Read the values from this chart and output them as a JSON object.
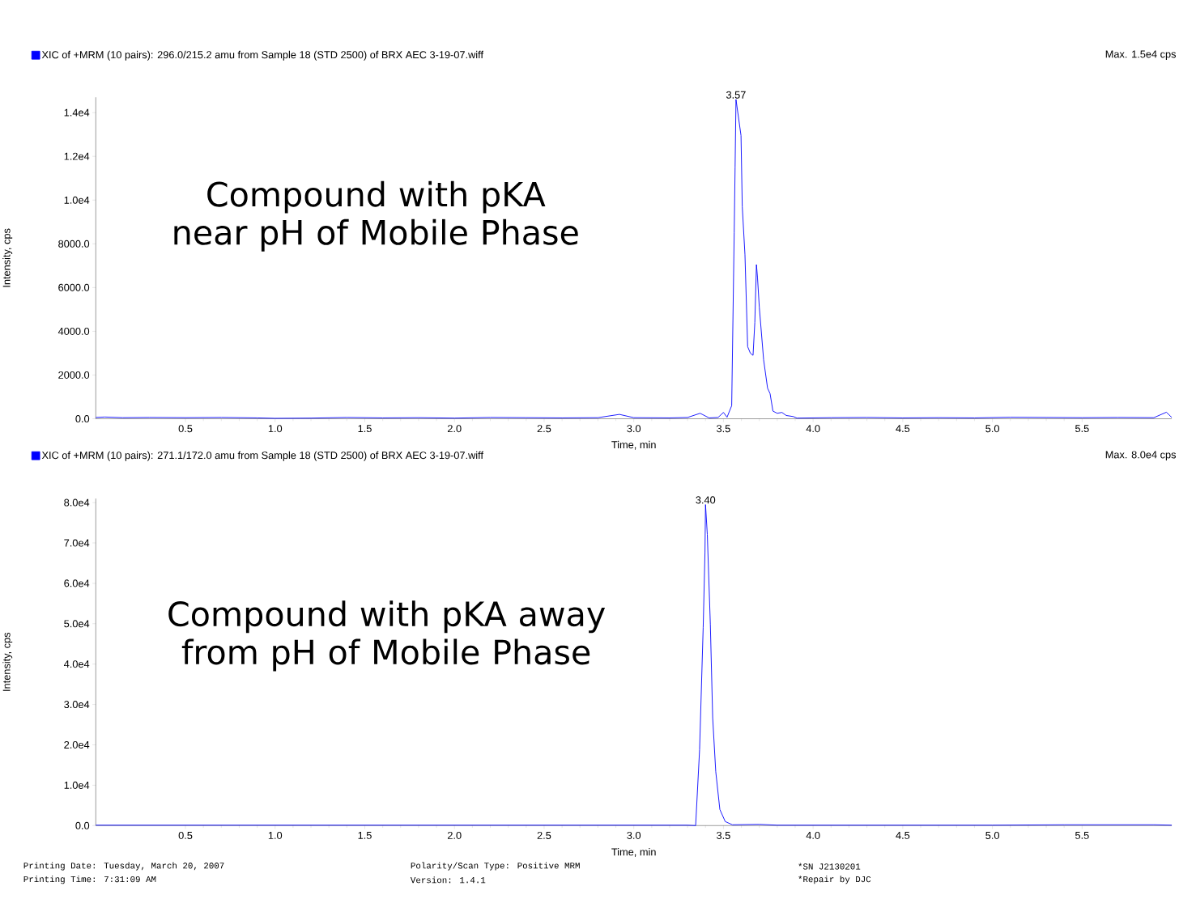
{
  "chart_data": [
    {
      "type": "line",
      "subtitle": "Max. 1.5e4 cps",
      "xlabel": "Time, min",
      "ylabel": "Intensity, cps",
      "series": [
        {
          "name": "XIC of +MRM (10 pairs): 296.0/215.2 amu from Sample 18 (STD 2500) of BRX AEC 3-19-07.wiff",
          "color": "#0000ff",
          "x": [
            0.0,
            0.05,
            0.15,
            0.3,
            0.5,
            0.7,
            0.9,
            1.0,
            1.2,
            1.4,
            1.6,
            1.8,
            2.0,
            2.2,
            2.4,
            2.6,
            2.8,
            2.92,
            3.0,
            3.2,
            3.3,
            3.37,
            3.42,
            3.47,
            3.5,
            3.52,
            3.546,
            3.56,
            3.565,
            3.57,
            3.598,
            3.605,
            3.62,
            3.635,
            3.65,
            3.665,
            3.675,
            3.684,
            3.69,
            3.7,
            3.724,
            3.746,
            3.76,
            3.776,
            3.8,
            3.826,
            3.85,
            3.89,
            3.91,
            4.1,
            4.3,
            4.5,
            4.7,
            4.9,
            5.1,
            5.3,
            5.5,
            5.7,
            5.9,
            5.97,
            6.0
          ],
          "values": [
            60,
            80,
            50,
            60,
            50,
            60,
            40,
            20,
            30,
            60,
            40,
            50,
            30,
            60,
            50,
            40,
            50,
            200,
            50,
            40,
            60,
            250,
            40,
            60,
            290,
            70,
            600,
            8500,
            11500,
            14600,
            12950,
            9700,
            7500,
            3300,
            3000,
            2900,
            4400,
            7050,
            6450,
            5100,
            2700,
            1400,
            1150,
            350,
            250,
            290,
            150,
            100,
            30,
            50,
            60,
            40,
            50,
            40,
            70,
            60,
            50,
            60,
            50,
            300,
            60
          ]
        }
      ],
      "xlim": [
        0,
        6
      ],
      "ylim": [
        0,
        14700
      ],
      "xticks": [
        {
          "value": 0.5,
          "label": "0.5"
        },
        {
          "value": 1.0,
          "label": "1.0"
        },
        {
          "value": 1.5,
          "label": "1.5"
        },
        {
          "value": 2.0,
          "label": "2.0"
        },
        {
          "value": 2.5,
          "label": "2.5"
        },
        {
          "value": 3.0,
          "label": "3.0"
        },
        {
          "value": 3.5,
          "label": "3.5"
        },
        {
          "value": 4.0,
          "label": "4.0"
        },
        {
          "value": 4.5,
          "label": "4.5"
        },
        {
          "value": 5.0,
          "label": "5.0"
        },
        {
          "value": 5.5,
          "label": "5.5"
        }
      ],
      "yticks": [
        {
          "value": 0,
          "label": "0.0"
        },
        {
          "value": 2000,
          "label": "2000.0"
        },
        {
          "value": 4000,
          "label": "4000.0"
        },
        {
          "value": 6000,
          "label": "6000.0"
        },
        {
          "value": 8000,
          "label": "8000.0"
        },
        {
          "value": 10000,
          "label": "1.0e4"
        },
        {
          "value": 12000,
          "label": "1.2e4"
        },
        {
          "value": 14000,
          "label": "1.4e4"
        }
      ],
      "annotations": [
        {
          "text": "3.57",
          "x": 3.57,
          "y": 14600
        },
        "Compound with pKA near pH of Mobile Phase"
      ],
      "legend": "top left",
      "marker": "none",
      "grid": false
    },
    {
      "type": "line",
      "subtitle": "Max. 8.0e4 cps",
      "xlabel": "Time, min",
      "ylabel": "Intensity, cps",
      "series": [
        {
          "name": "XIC of +MRM (10 pairs): 271.1/172.0 amu from Sample 18 (STD 2500) of BRX AEC 3-19-07.wiff",
          "color": "#0000ff",
          "x": [
            0.0,
            0.5,
            1.0,
            2.0,
            3.0,
            3.3,
            3.345,
            3.367,
            3.387,
            3.397,
            3.4,
            3.41,
            3.427,
            3.44,
            3.457,
            3.48,
            3.51,
            3.55,
            3.7,
            3.8,
            4.5,
            5.0,
            5.4,
            5.9,
            6.0
          ],
          "values": [
            100,
            100,
            100,
            100,
            100,
            100,
            0,
            18800,
            49000,
            67600,
            79500,
            72100,
            49800,
            26700,
            13400,
            4000,
            1000,
            200,
            300,
            100,
            100,
            100,
            200,
            200,
            100
          ]
        }
      ],
      "xlim": [
        0,
        6
      ],
      "ylim": [
        0,
        81000
      ],
      "xticks": [
        {
          "value": 0.5,
          "label": "0.5"
        },
        {
          "value": 1.0,
          "label": "1.0"
        },
        {
          "value": 1.5,
          "label": "1.5"
        },
        {
          "value": 2.0,
          "label": "2.0"
        },
        {
          "value": 2.5,
          "label": "2.5"
        },
        {
          "value": 3.0,
          "label": "3.0"
        },
        {
          "value": 3.5,
          "label": "3.5"
        },
        {
          "value": 4.0,
          "label": "4.0"
        },
        {
          "value": 4.5,
          "label": "4.5"
        },
        {
          "value": 5.0,
          "label": "5.0"
        },
        {
          "value": 5.5,
          "label": "5.5"
        }
      ],
      "yticks": [
        {
          "value": 0,
          "label": "0.0"
        },
        {
          "value": 10000,
          "label": "1.0e4"
        },
        {
          "value": 20000,
          "label": "2.0e4"
        },
        {
          "value": 30000,
          "label": "3.0e4"
        },
        {
          "value": 40000,
          "label": "4.0e4"
        },
        {
          "value": 50000,
          "label": "5.0e4"
        },
        {
          "value": 60000,
          "label": "6.0e4"
        },
        {
          "value": 70000,
          "label": "7.0e4"
        },
        {
          "value": 80000,
          "label": "8.0e4"
        }
      ],
      "annotations": [
        {
          "text": "3.40",
          "x": 3.4,
          "y": 79500
        },
        "Compound with pKA away from pH of Mobile Phase",
        "Printing Date: Tuesday, March 20, 2007",
        "Printing Time: 7:31:09 AM",
        "Polarity/Scan Type: Positive MRM",
        "Version: 1.4.1",
        "*SN J2130201",
        "*Repair by DJC"
      ],
      "legend": "top left",
      "marker": "none",
      "grid": false
    }
  ]
}
